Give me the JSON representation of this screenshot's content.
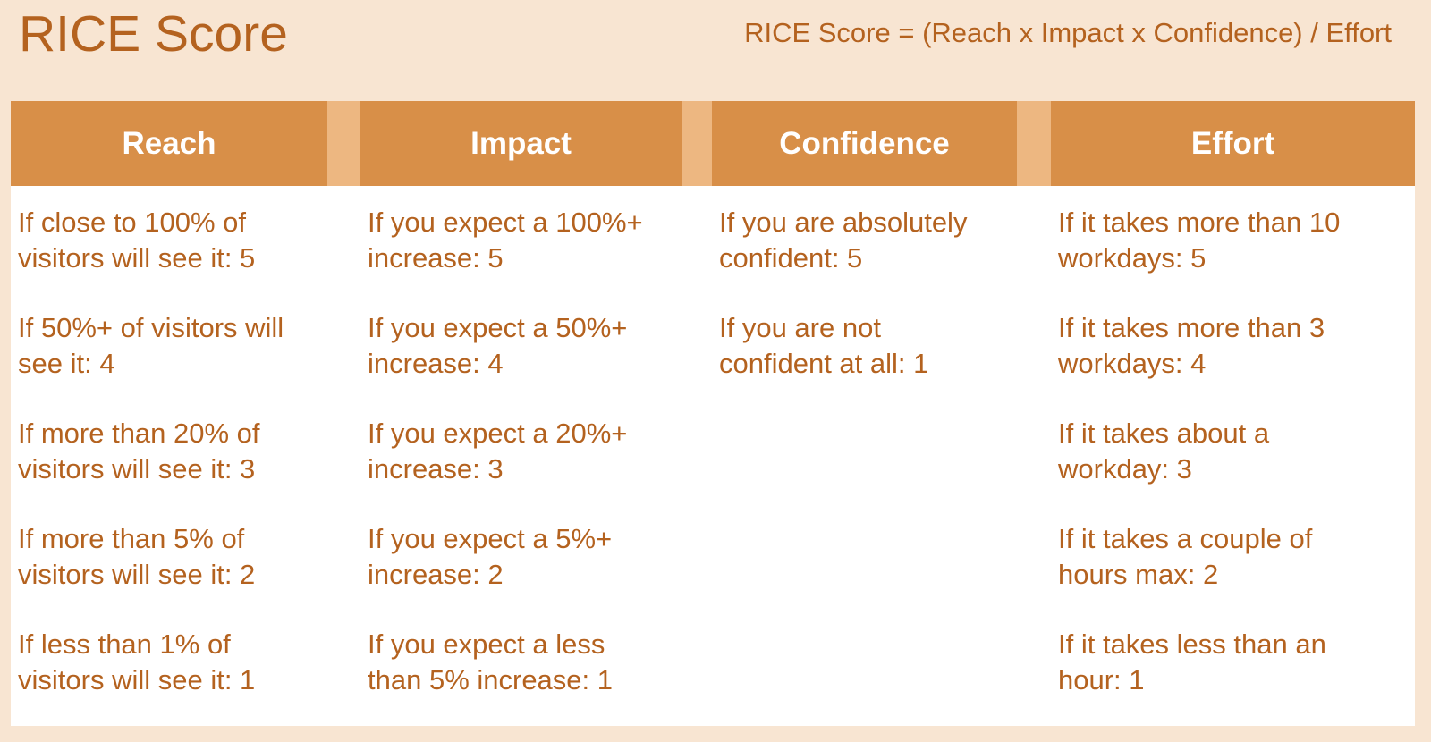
{
  "title": "RICE Score",
  "formula": "RICE Score = (Reach x Impact x Confidence) / Effort",
  "colors": {
    "background": "#f8e5d2",
    "header": "#d88f48",
    "header_gap": "#edb781",
    "text": "#b4621f",
    "header_text": "#ffffff"
  },
  "columns": [
    {
      "header": "Reach",
      "entries": [
        [
          "If close to 100% of",
          "visitors will see it: 5"
        ],
        [
          "If 50%+ of visitors will",
          "see it: 4"
        ],
        [
          "If more than 20% of",
          "visitors will see it: 3"
        ],
        [
          "If more than 5% of",
          "visitors will see it: 2"
        ],
        [
          "If less than 1% of",
          "visitors will see it: 1"
        ]
      ]
    },
    {
      "header": "Impact",
      "entries": [
        [
          "If you expect a 100%+",
          "increase: 5"
        ],
        [
          "If you expect a 50%+",
          "increase: 4"
        ],
        [
          "If you expect a 20%+",
          "increase: 3"
        ],
        [
          "If you expect a 5%+",
          "increase: 2"
        ],
        [
          "If you expect a less",
          "than 5% increase: 1"
        ]
      ]
    },
    {
      "header": "Confidence",
      "entries": [
        [
          "If you are absolutely",
          "confident: 5"
        ],
        [
          "If you are not",
          "confident at all: 1"
        ]
      ]
    },
    {
      "header": "Effort",
      "entries": [
        [
          "If it takes more than 10",
          "workdays: 5"
        ],
        [
          "If it takes more than 3",
          "workdays: 4"
        ],
        [
          "If it takes about a",
          "workday: 3"
        ],
        [
          "If it takes a couple of",
          "hours max: 2"
        ],
        [
          "If it takes less than an",
          "hour: 1"
        ]
      ]
    }
  ]
}
